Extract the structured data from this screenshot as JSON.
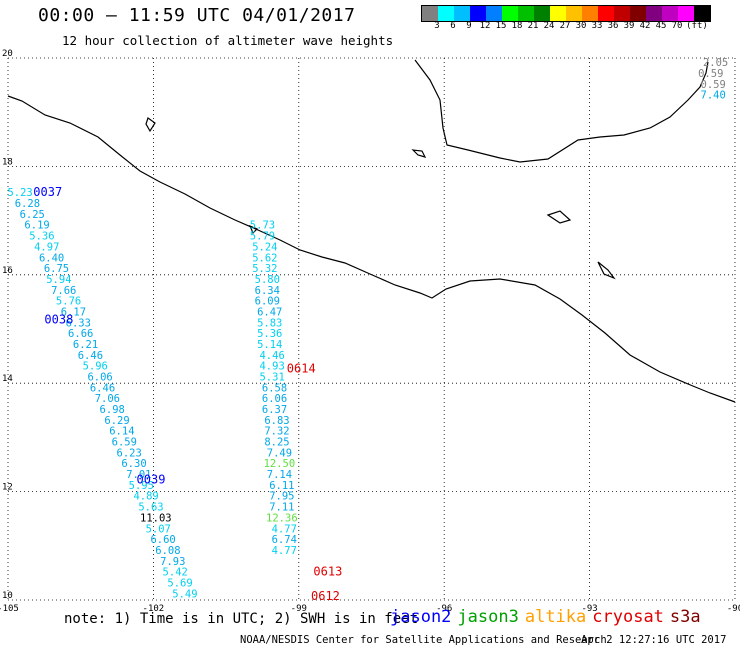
{
  "header": {
    "title": "00:00 – 11:59 UTC 04/01/2017",
    "subtitle": "12 hour collection of altimeter wave heights"
  },
  "colorbar": {
    "colors": [
      "#808080",
      "#00ffff",
      "#00bfff",
      "#0000ff",
      "#0080ff",
      "#00ff00",
      "#00c000",
      "#008000",
      "#ffff00",
      "#ffc000",
      "#ff8000",
      "#ff0000",
      "#c00000",
      "#800000",
      "#800080",
      "#c000c0",
      "#ff00ff",
      "#000000"
    ],
    "ticks": [
      "3",
      "6",
      "9",
      "12",
      "15",
      "18",
      "21",
      "24",
      "27",
      "30",
      "33",
      "36",
      "39",
      "42",
      "45",
      "70",
      "(ft)"
    ]
  },
  "chart_data": {
    "type": "map",
    "xlim": [
      -105,
      -90
    ],
    "ylim": [
      10,
      20
    ],
    "x_ticks": [
      "-105",
      "-102",
      "-99",
      "-96",
      "-93",
      "-90"
    ],
    "y_ticks": [
      "10",
      "12",
      "14",
      "16",
      "18",
      "20"
    ],
    "grid": true,
    "tracks": [
      {
        "satellite": "jason2",
        "times": [
          {
            "label": "0037",
            "lon": -104.18,
            "lat": 17.45
          },
          {
            "label": "0038",
            "lon": -103.95,
            "lat": 15.1
          },
          {
            "label": "0039",
            "lon": -102.05,
            "lat": 12.15
          }
        ],
        "points": [
          {
            "v": "5.23",
            "lon": -104.75,
            "lat": 17.45
          },
          {
            "v": "6.28",
            "lon": -104.6,
            "lat": 17.25
          },
          {
            "v": "6.25",
            "lon": -104.5,
            "lat": 17.05
          },
          {
            "v": "6.19",
            "lon": -104.4,
            "lat": 16.85
          },
          {
            "v": "5.36",
            "lon": -104.3,
            "lat": 16.65
          },
          {
            "v": "4.97",
            "lon": -104.2,
            "lat": 16.45
          },
          {
            "v": "6.40",
            "lon": -104.1,
            "lat": 16.25
          },
          {
            "v": "6.75",
            "lon": -104.0,
            "lat": 16.05
          },
          {
            "v": "5.94",
            "lon": -103.95,
            "lat": 15.85
          },
          {
            "v": "7.66",
            "lon": -103.85,
            "lat": 15.65
          },
          {
            "v": "5.76",
            "lon": -103.75,
            "lat": 15.45
          },
          {
            "v": "6.17",
            "lon": -103.65,
            "lat": 15.25
          },
          {
            "v": "6.33",
            "lon": -103.55,
            "lat": 15.05
          },
          {
            "v": "6.66",
            "lon": -103.5,
            "lat": 14.85
          },
          {
            "v": "6.21",
            "lon": -103.4,
            "lat": 14.65
          },
          {
            "v": "6.46",
            "lon": -103.3,
            "lat": 14.45
          },
          {
            "v": "5.96",
            "lon": -103.2,
            "lat": 14.25
          },
          {
            "v": "6.06",
            "lon": -103.1,
            "lat": 14.05
          },
          {
            "v": "6.46",
            "lon": -103.05,
            "lat": 13.85
          },
          {
            "v": "7.06",
            "lon": -102.95,
            "lat": 13.65
          },
          {
            "v": "6.98",
            "lon": -102.85,
            "lat": 13.45
          },
          {
            "v": "6.29",
            "lon": -102.75,
            "lat": 13.25
          },
          {
            "v": "6.14",
            "lon": -102.65,
            "lat": 13.05
          },
          {
            "v": "6.59",
            "lon": -102.6,
            "lat": 12.85
          },
          {
            "v": "6.23",
            "lon": -102.5,
            "lat": 12.65
          },
          {
            "v": "6.30",
            "lon": -102.4,
            "lat": 12.45
          },
          {
            "v": "7.01",
            "lon": -102.3,
            "lat": 12.25
          },
          {
            "v": "5.95",
            "lon": -102.25,
            "lat": 12.05
          },
          {
            "v": "4.89",
            "lon": -102.15,
            "lat": 11.85
          },
          {
            "v": "5.63",
            "lon": -102.05,
            "lat": 11.65
          },
          {
            "v": "11.03",
            "lon": -101.95,
            "lat": 11.45
          },
          {
            "v": "5.07",
            "lon": -101.9,
            "lat": 11.25
          },
          {
            "v": "6.60",
            "lon": -101.8,
            "lat": 11.05
          },
          {
            "v": "6.08",
            "lon": -101.7,
            "lat": 10.85
          },
          {
            "v": "7.93",
            "lon": -101.6,
            "lat": 10.65
          },
          {
            "v": "5.42",
            "lon": -101.55,
            "lat": 10.45
          },
          {
            "v": "5.69",
            "lon": -101.45,
            "lat": 10.25
          },
          {
            "v": "5.49",
            "lon": -101.35,
            "lat": 10.05
          }
        ]
      },
      {
        "satellite": "cryosat",
        "times": [
          {
            "label": "0614",
            "lon": -98.95,
            "lat": 14.2
          },
          {
            "label": "0613",
            "lon": -98.4,
            "lat": 10.45
          },
          {
            "label": "0612",
            "lon": -98.45,
            "lat": 10.0
          }
        ],
        "points": [
          {
            "v": "5.73",
            "lon": -99.75,
            "lat": 16.85
          },
          {
            "v": "5.79",
            "lon": -99.75,
            "lat": 16.65
          },
          {
            "v": "5.24",
            "lon": -99.7,
            "lat": 16.45
          },
          {
            "v": "5.62",
            "lon": -99.7,
            "lat": 16.25
          },
          {
            "v": "5.32",
            "lon": -99.7,
            "lat": 16.05
          },
          {
            "v": "5.80",
            "lon": -99.65,
            "lat": 15.85
          },
          {
            "v": "6.34",
            "lon": -99.65,
            "lat": 15.65
          },
          {
            "v": "6.09",
            "lon": -99.65,
            "lat": 15.45
          },
          {
            "v": "6.47",
            "lon": -99.6,
            "lat": 15.25
          },
          {
            "v": "5.83",
            "lon": -99.6,
            "lat": 15.05
          },
          {
            "v": "5.36",
            "lon": -99.6,
            "lat": 14.85
          },
          {
            "v": "5.14",
            "lon": -99.6,
            "lat": 14.65
          },
          {
            "v": "4.46",
            "lon": -99.55,
            "lat": 14.45
          },
          {
            "v": "4.93",
            "lon": -99.55,
            "lat": 14.25
          },
          {
            "v": "5.31",
            "lon": -99.55,
            "lat": 14.05
          },
          {
            "v": "6.58",
            "lon": -99.5,
            "lat": 13.85
          },
          {
            "v": "6.06",
            "lon": -99.5,
            "lat": 13.65
          },
          {
            "v": "6.37",
            "lon": -99.5,
            "lat": 13.45
          },
          {
            "v": "6.83",
            "lon": -99.45,
            "lat": 13.25
          },
          {
            "v": "7.32",
            "lon": -99.45,
            "lat": 13.05
          },
          {
            "v": "8.25",
            "lon": -99.45,
            "lat": 12.85
          },
          {
            "v": "7.49",
            "lon": -99.4,
            "lat": 12.65
          },
          {
            "v": "12.50",
            "lon": -99.4,
            "lat": 12.45
          },
          {
            "v": "7.14",
            "lon": -99.4,
            "lat": 12.25
          },
          {
            "v": "6.11",
            "lon": -99.35,
            "lat": 12.05
          },
          {
            "v": "7.95",
            "lon": -99.35,
            "lat": 11.85
          },
          {
            "v": "7.11",
            "lon": -99.35,
            "lat": 11.65
          },
          {
            "v": "12.36",
            "lon": -99.35,
            "lat": 11.45
          },
          {
            "v": "4.77",
            "lon": -99.3,
            "lat": 11.25
          },
          {
            "v": "6.74",
            "lon": -99.3,
            "lat": 11.05
          },
          {
            "v": "4.77",
            "lon": -99.3,
            "lat": 10.85
          }
        ]
      },
      {
        "satellite": "unlabeled-east",
        "times": [],
        "points": [
          {
            "v": "2.05",
            "lon": -90.4,
            "lat": 19.85
          },
          {
            "v": "0.59",
            "lon": -90.5,
            "lat": 19.65
          },
          {
            "v": "0.59",
            "lon": -90.45,
            "lat": 19.45
          },
          {
            "v": "7.40",
            "lon": -90.45,
            "lat": 19.25
          }
        ]
      }
    ]
  },
  "footer": {
    "note": "note:  1) Time is in UTC;  2) SWH is in feet",
    "satellites": [
      {
        "name": "jason2",
        "color": "#0000ff"
      },
      {
        "name": "jason3",
        "color": "#00a000"
      },
      {
        "name": "altika",
        "color": "#ffa000"
      },
      {
        "name": "cryosat",
        "color": "#e00000"
      },
      {
        "name": "s3a",
        "color": "#800000"
      }
    ],
    "credit": "NOAA/NESDIS Center for Satellite Applications and Research",
    "timestamp": "Apr  2 12:27:16 UTC 2017"
  }
}
